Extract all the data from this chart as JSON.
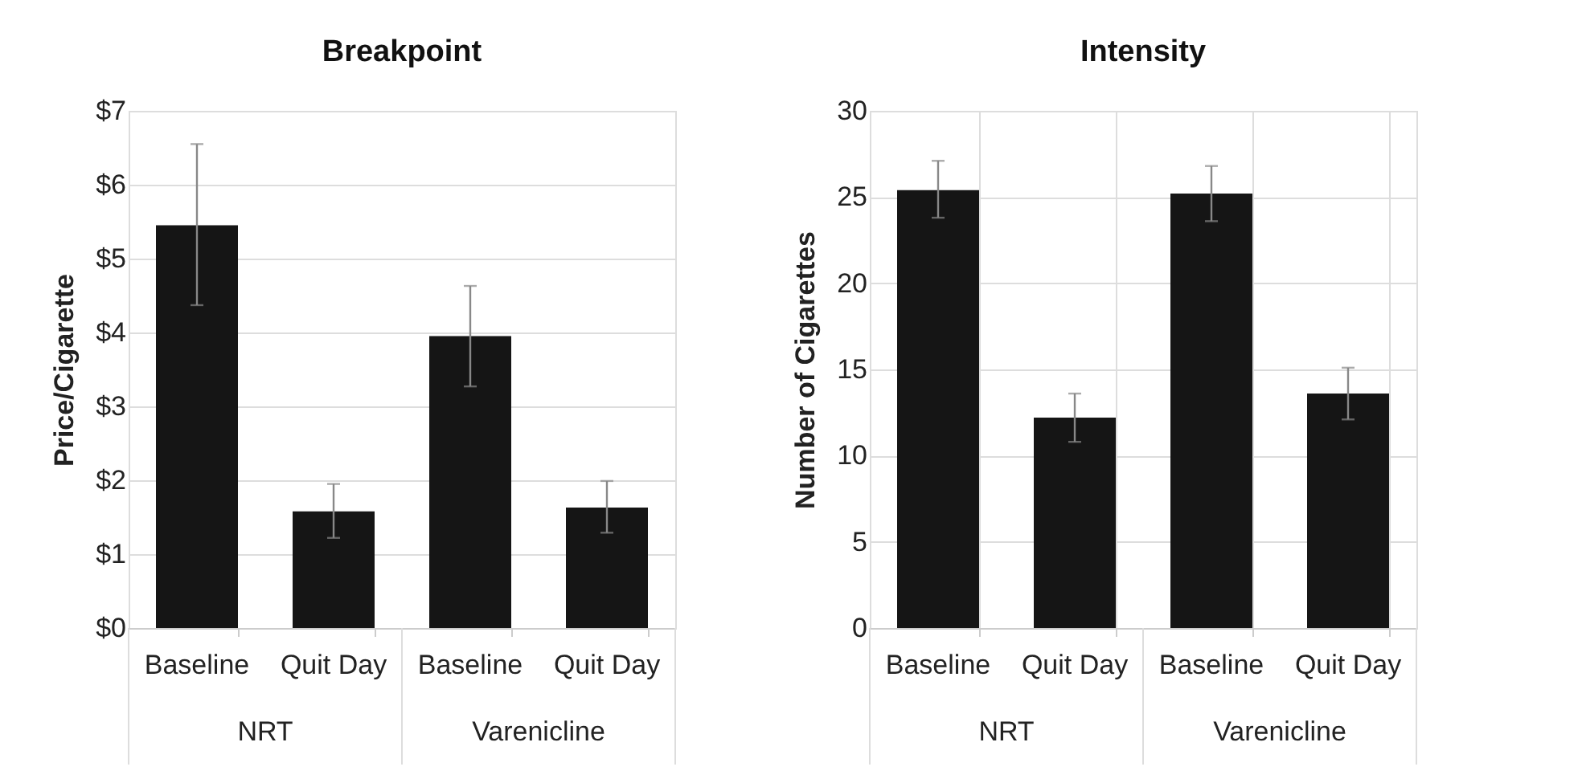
{
  "chart_data": [
    {
      "type": "bar",
      "title": "Breakpoint",
      "ylabel": "Price/Cigarette",
      "categories": [
        "Baseline",
        "Quit Day",
        "Baseline",
        "Quit Day"
      ],
      "values": [
        5.45,
        1.58,
        3.95,
        1.63
      ],
      "color": "#151515",
      "errors": [
        [
          4.37,
          6.55
        ],
        [
          1.22,
          1.95
        ],
        [
          3.27,
          4.63
        ],
        [
          1.29,
          1.99
        ]
      ],
      "ylim": [
        0,
        7
      ],
      "yticks": [
        {
          "value": 0,
          "label": "$0"
        },
        {
          "value": 1,
          "label": "$1"
        },
        {
          "value": 2,
          "label": "$2"
        },
        {
          "value": 3,
          "label": "$3"
        },
        {
          "value": 4,
          "label": "$4"
        },
        {
          "value": 5,
          "label": "$5"
        },
        {
          "value": 6,
          "label": "$6"
        },
        {
          "value": 7,
          "label": "$7"
        }
      ],
      "grid": "y",
      "annotations": [
        "NRT",
        "Varenicline"
      ]
    },
    {
      "type": "bar",
      "title": "Intensity",
      "ylabel": "Number of Cigarettes",
      "categories": [
        "Baseline",
        "Quit Day",
        "Baseline",
        "Quit Day"
      ],
      "values": [
        25.4,
        12.2,
        25.2,
        13.6
      ],
      "color": "#151515",
      "errors": [
        [
          23.8,
          27.1
        ],
        [
          10.8,
          13.6
        ],
        [
          23.6,
          26.8
        ],
        [
          12.1,
          15.1
        ]
      ],
      "ylim": [
        0,
        30
      ],
      "yticks": [
        0,
        5,
        10,
        15,
        20,
        25,
        30
      ],
      "grid": true,
      "annotations": [
        "NRT",
        "Varenicline"
      ]
    }
  ]
}
